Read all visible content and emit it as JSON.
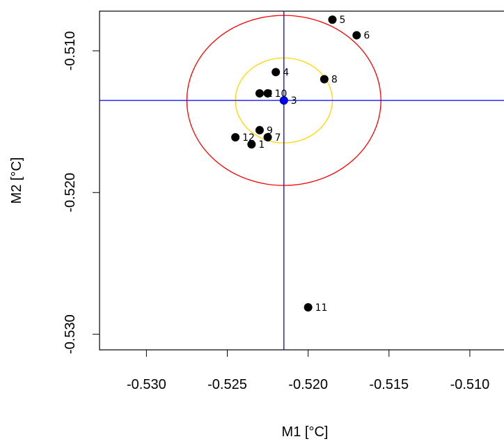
{
  "chart_data": {
    "type": "scatter",
    "title": "",
    "xlabel": "M1 [°C]",
    "ylabel": "M2 [°C]",
    "xlim": [
      -0.5329,
      -0.5075
    ],
    "ylim": [
      -0.5311,
      -0.5072
    ],
    "x_ticks": [
      -0.53,
      -0.525,
      -0.52,
      -0.515,
      -0.51
    ],
    "y_ticks": [
      -0.53,
      -0.52,
      -0.51
    ],
    "x_tick_labels": [
      "-0.530",
      "-0.525",
      "-0.520",
      "-0.515",
      "-0.510"
    ],
    "y_tick_labels": [
      "-0.530",
      "-0.520",
      "-0.510"
    ],
    "grid": false,
    "points": [
      {
        "label": "1",
        "x": -0.5235,
        "y": -0.5166
      },
      {
        "label": "2",
        "x": -0.523,
        "y": -0.513
      },
      {
        "label": "3",
        "x": -0.5215,
        "y": -0.5135
      },
      {
        "label": "4",
        "x": -0.522,
        "y": -0.5115
      },
      {
        "label": "5",
        "x": -0.5185,
        "y": -0.5078
      },
      {
        "label": "6",
        "x": -0.517,
        "y": -0.5089
      },
      {
        "label": "7",
        "x": -0.5225,
        "y": -0.5161
      },
      {
        "label": "8",
        "x": -0.519,
        "y": -0.512
      },
      {
        "label": "9",
        "x": -0.523,
        "y": -0.5156
      },
      {
        "label": "10",
        "x": -0.5225,
        "y": -0.513
      },
      {
        "label": "11",
        "x": -0.52,
        "y": -0.5281
      },
      {
        "label": "12",
        "x": -0.5245,
        "y": -0.5161
      }
    ],
    "center": {
      "x": -0.5215,
      "y": -0.5135,
      "color": "#0000ff"
    },
    "crosshair": {
      "x": -0.5215,
      "y": -0.5135,
      "color": "#0000ff"
    },
    "ellipses": [
      {
        "cx": -0.5215,
        "cy": -0.5135,
        "rx": 0.006,
        "ry": 0.006,
        "color": "#ff0000"
      },
      {
        "cx": -0.5215,
        "cy": -0.5135,
        "rx": 0.003,
        "ry": 0.003,
        "color": "#ffd700"
      }
    ],
    "point_color": "#000000"
  }
}
